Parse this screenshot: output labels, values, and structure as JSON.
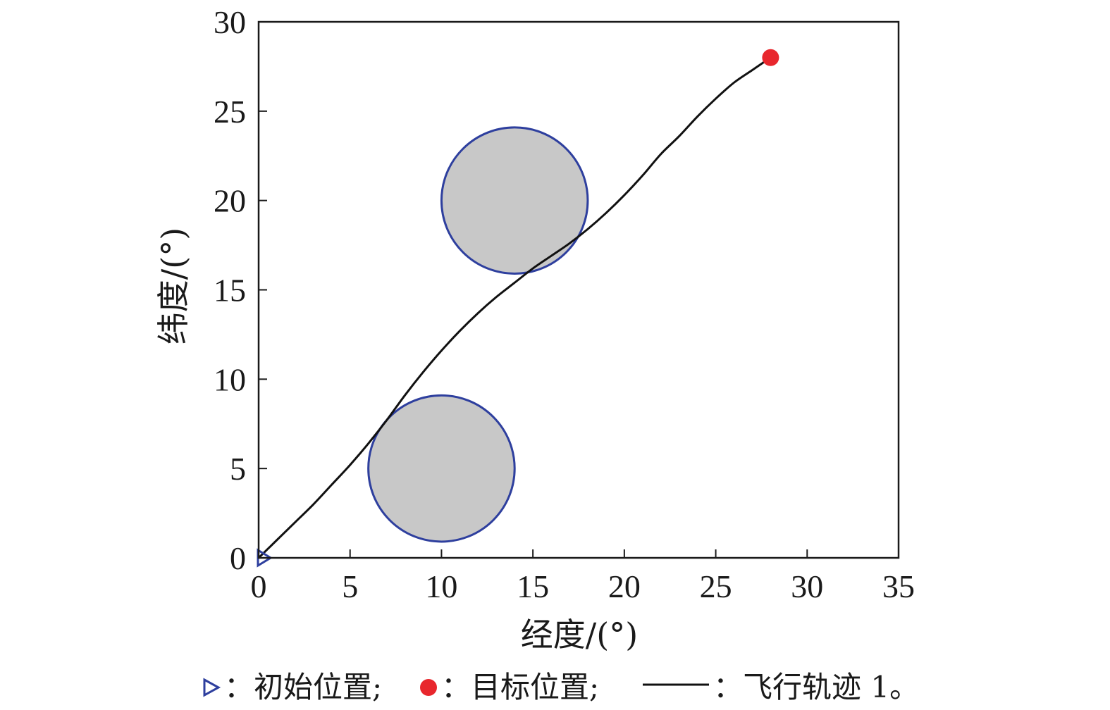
{
  "chart_data": {
    "type": "line",
    "xlabel": "经度/(°)",
    "ylabel": "纬度/(°)",
    "xlim": [
      0,
      35
    ],
    "ylim": [
      0,
      30
    ],
    "xticks": [
      0,
      5,
      10,
      15,
      20,
      25,
      30,
      35
    ],
    "yticks": [
      0,
      5,
      10,
      15,
      20,
      25,
      30
    ],
    "grid": false,
    "start": {
      "x": 0,
      "y": 0
    },
    "target": {
      "x": 28,
      "y": 28
    },
    "obstacles": [
      {
        "cx": 10,
        "cy": 5,
        "r": 4
      },
      {
        "cx": 14,
        "cy": 20,
        "r": 4
      }
    ],
    "series": [
      {
        "x": [
          0,
          1,
          2,
          3,
          4,
          5,
          6,
          7,
          8,
          9,
          10,
          11,
          12,
          13,
          14,
          15,
          16,
          17,
          18,
          19,
          20,
          21,
          22,
          23,
          24,
          25,
          26,
          27,
          28
        ],
        "y": [
          0,
          1.0,
          2.0,
          3.0,
          4.1,
          5.2,
          6.4,
          7.7,
          9.1,
          10.4,
          11.6,
          12.7,
          13.7,
          14.6,
          15.4,
          16.2,
          16.9,
          17.6,
          18.4,
          19.3,
          20.3,
          21.4,
          22.6,
          23.6,
          24.7,
          25.7,
          26.6,
          27.3,
          28.0
        ]
      }
    ],
    "colors": {
      "start": "#2e3f9e",
      "target": "#e8272d",
      "trajectory": "#111111",
      "obstacle_fill": "#c8c8c8",
      "obstacle_stroke": "#2e3f9e"
    },
    "legend": {
      "position": "bottom",
      "start_label": "：初始位置;",
      "target_label": "：目标位置;",
      "trajectory_label": "：飞行轨迹 1。"
    }
  }
}
